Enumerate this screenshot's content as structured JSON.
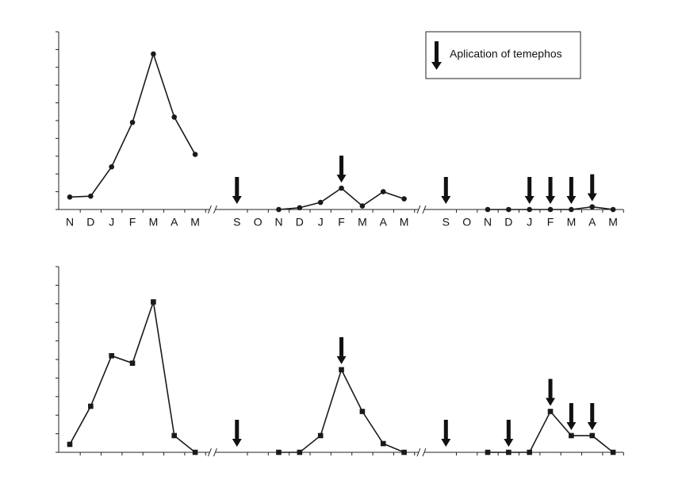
{
  "chart_data": [
    {
      "type": "line",
      "marker": "circle",
      "color": "#1a1a1a",
      "categories": [
        "N",
        "D",
        "J",
        "F",
        "M",
        "A",
        "M",
        null,
        "S",
        "O",
        "N",
        "D",
        "J",
        "F",
        "M",
        "A",
        "M",
        null,
        "S",
        "O",
        "N",
        "D",
        "J",
        "F",
        "M",
        "A",
        "M"
      ],
      "values": [
        0.7,
        0.75,
        2.4,
        4.9,
        8.75,
        5.2,
        3.1,
        null,
        null,
        null,
        0,
        0.1,
        0.4,
        1.2,
        0.2,
        1.0,
        0.6,
        null,
        null,
        null,
        0,
        0,
        0,
        0,
        0,
        0.15,
        0
      ],
      "applications": [
        8,
        13,
        18,
        22,
        23,
        24,
        25
      ],
      "ylim": [
        0,
        10
      ],
      "yticks": [
        0,
        1,
        2,
        3,
        4,
        5,
        6,
        7,
        8,
        9,
        10
      ],
      "legend_label": "Aplication of temephos"
    },
    {
      "type": "line",
      "marker": "square",
      "color": "#1a1a1a",
      "values": [
        0.43,
        2.48,
        5.2,
        4.8,
        8.1,
        0.9,
        0,
        null,
        null,
        null,
        0,
        0,
        0.9,
        4.45,
        2.2,
        0.47,
        0,
        null,
        null,
        null,
        0,
        0,
        0,
        2.2,
        0.9,
        0.9,
        0
      ],
      "applications": [
        8,
        13,
        18,
        21,
        23,
        24,
        25
      ],
      "ylim": [
        0,
        10
      ],
      "yticks": [
        0,
        1,
        2,
        3,
        4,
        5,
        6,
        7,
        8,
        9,
        10
      ]
    }
  ]
}
